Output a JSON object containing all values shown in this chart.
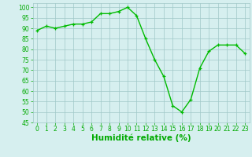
{
  "x": [
    0,
    1,
    2,
    3,
    4,
    5,
    6,
    7,
    8,
    9,
    10,
    11,
    12,
    13,
    14,
    15,
    16,
    17,
    18,
    19,
    20,
    21,
    22,
    23
  ],
  "y": [
    89,
    91,
    90,
    91,
    92,
    92,
    93,
    97,
    97,
    98,
    100,
    96,
    85,
    75,
    67,
    53,
    50,
    56,
    71,
    79,
    82,
    82,
    82,
    78
  ],
  "line_color": "#00bb00",
  "marker": "+",
  "marker_size": 3.5,
  "bg_color": "#d6efef",
  "grid_color": "#a0c8c8",
  "xlabel": "Humidité relative (%)",
  "xlabel_color": "#00aa00",
  "ylim": [
    45,
    102
  ],
  "xlim": [
    -0.5,
    23.5
  ],
  "yticks": [
    45,
    50,
    55,
    60,
    65,
    70,
    75,
    80,
    85,
    90,
    95,
    100
  ],
  "xticks": [
    0,
    1,
    2,
    3,
    4,
    5,
    6,
    7,
    8,
    9,
    10,
    11,
    12,
    13,
    14,
    15,
    16,
    17,
    18,
    19,
    20,
    21,
    22,
    23
  ],
  "tick_color": "#00aa00",
  "tick_fontsize": 5.5,
  "xlabel_fontsize": 7.5,
  "linewidth": 1.0,
  "marker_edge_width": 0.9
}
